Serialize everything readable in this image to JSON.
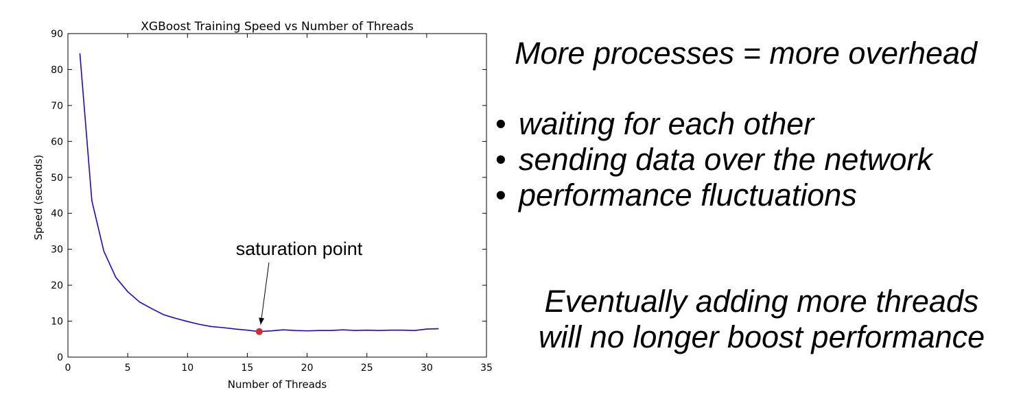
{
  "chart_data": {
    "type": "line",
    "title": "XGBoost Training Speed vs Number of Threads",
    "xlabel": "Number of Threads",
    "ylabel": "Speed (seconds)",
    "xlim": [
      0,
      35
    ],
    "ylim": [
      0,
      90
    ],
    "xticks": [
      0,
      5,
      10,
      15,
      20,
      25,
      30,
      35
    ],
    "yticks": [
      0,
      10,
      20,
      30,
      40,
      50,
      60,
      70,
      80,
      90
    ],
    "grid": false,
    "line_color": "#1f00e6",
    "series": [
      {
        "x": [
          1,
          2,
          3,
          4,
          5,
          6,
          7,
          8,
          9,
          10,
          11,
          12,
          13,
          14,
          15,
          16,
          17,
          18,
          19,
          20,
          21,
          22,
          23,
          24,
          25,
          26,
          27,
          28,
          29,
          30,
          31
        ],
        "values": [
          84.5,
          43.5,
          29.5,
          22.2,
          18.2,
          15.3,
          13.5,
          11.8,
          10.8,
          9.9,
          9.1,
          8.5,
          8.2,
          7.8,
          7.5,
          7.1,
          7.3,
          7.6,
          7.4,
          7.3,
          7.4,
          7.4,
          7.6,
          7.4,
          7.5,
          7.4,
          7.5,
          7.5,
          7.4,
          7.8,
          7.9
        ]
      }
    ],
    "highlight_point": {
      "x": 16,
      "y": 7.1,
      "color": "#d42a2a"
    },
    "annotation": {
      "text": "saturation point",
      "x": 16,
      "y": 7.1
    }
  },
  "slide": {
    "heading": "More processes = more overhead",
    "bullet_glyph": "•",
    "bullets": [
      "waiting for each other",
      "sending data over the network",
      "performance fluctuations"
    ],
    "conclusion_line1": "Eventually adding more threads",
    "conclusion_line2": "will no longer boost performance"
  }
}
